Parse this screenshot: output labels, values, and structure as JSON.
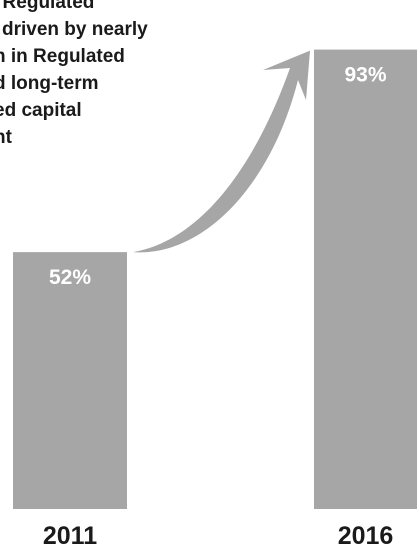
{
  "chart_data": {
    "type": "bar",
    "categories": [
      "2011",
      "2016"
    ],
    "values": [
      52,
      93
    ],
    "value_suffix": "%",
    "ylim": [
      0,
      100
    ],
    "grid": false,
    "annotation": {
      "lines": [
        "l Regulated",
        "driven by nearly",
        "n in Regulated",
        "d long-term",
        "ed capital",
        "nt"
      ]
    },
    "arrow": {
      "from_category": "2011",
      "to_category": "2016"
    }
  },
  "colors": {
    "bar": "#a6a6a6",
    "arrow": "#a6a6a6",
    "value_text": "#ffffff",
    "label_text": "#1a1a1a",
    "background": "#ffffff"
  }
}
